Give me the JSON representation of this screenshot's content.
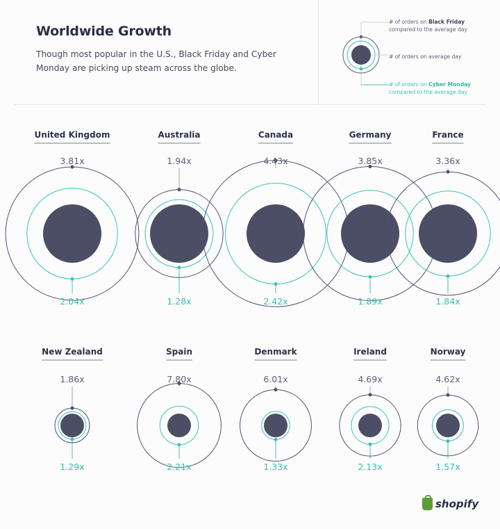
{
  "header": {
    "title": "Worldwide Growth",
    "subtitle": "Though most popular in the U.S., Black Friday and Cyber Monday are picking up steam across the globe."
  },
  "legend": {
    "black_friday_prefix": "# of orders on ",
    "black_friday_bold": "Black Friday",
    "black_friday_suffix": "compared to the average day",
    "average_label": "# of orders on average day",
    "cyber_monday_prefix": "# of orders on ",
    "cyber_monday_bold": "Cyber Monday",
    "cyber_monday_suffix": "compared to the average day"
  },
  "colors": {
    "black_friday": "#4d5270",
    "cyber_monday": "#3cc3b4",
    "average": "#4b4e64",
    "text_dark": "#2b2f45"
  },
  "chart_data": {
    "type": "bubble",
    "title": "Worldwide Growth",
    "series": [
      {
        "name": "Black Friday",
        "values": [
          3.81,
          1.94,
          4.43,
          3.85,
          3.36,
          1.86,
          7.8,
          6.01,
          4.69,
          4.62
        ]
      },
      {
        "name": "Cyber Monday",
        "values": [
          2.04,
          1.28,
          2.42,
          1.89,
          1.84,
          1.29,
          2.21,
          1.33,
          2.13,
          1.57
        ]
      }
    ],
    "countries": [
      {
        "name": "United Kingdom",
        "black_friday": 3.81,
        "cyber_monday": 2.04,
        "bf_label": "3.81x",
        "cm_label": "2.04x"
      },
      {
        "name": "Australia",
        "black_friday": 1.94,
        "cyber_monday": 1.28,
        "bf_label": "1.94x",
        "cm_label": "1.28x"
      },
      {
        "name": "Canada",
        "black_friday": 4.43,
        "cyber_monday": 2.42,
        "bf_label": "4.43x",
        "cm_label": "2.42x"
      },
      {
        "name": "Germany",
        "black_friday": 3.85,
        "cyber_monday": 1.89,
        "bf_label": "3.85x",
        "cm_label": "1.89x"
      },
      {
        "name": "France",
        "black_friday": 3.36,
        "cyber_monday": 1.84,
        "bf_label": "3.36x",
        "cm_label": "1.84x"
      },
      {
        "name": "New Zealand",
        "black_friday": 1.86,
        "cyber_monday": 1.29,
        "bf_label": "1.86x",
        "cm_label": "1.29x"
      },
      {
        "name": "Spain",
        "black_friday": 7.8,
        "cyber_monday": 2.21,
        "bf_label": "7.80x",
        "cm_label": "2.21x"
      },
      {
        "name": "Denmark",
        "black_friday": 6.01,
        "cyber_monday": 1.33,
        "bf_label": "6.01x",
        "cm_label": "1.33x"
      },
      {
        "name": "Ireland",
        "black_friday": 4.69,
        "cyber_monday": 2.13,
        "bf_label": "4.69x",
        "cm_label": "2.13x"
      },
      {
        "name": "Norway",
        "black_friday": 4.62,
        "cyber_monday": 1.57,
        "bf_label": "4.62x",
        "cm_label": "1.57x"
      }
    ]
  },
  "footer": {
    "brand": "shopify"
  }
}
